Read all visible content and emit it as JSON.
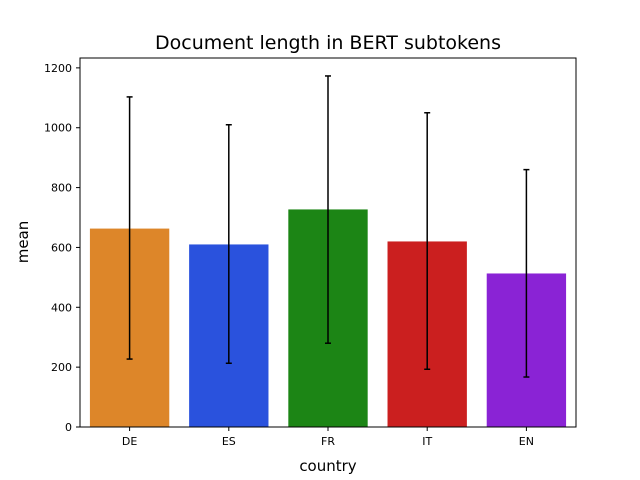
{
  "chart_data": {
    "type": "bar",
    "title": "Document length in BERT subtokens",
    "xlabel": "country",
    "ylabel": "mean",
    "categories": [
      "DE",
      "ES",
      "FR",
      "IT",
      "EN"
    ],
    "values": [
      663,
      610,
      727,
      620,
      513
    ],
    "error_low": [
      227,
      213,
      280,
      193,
      167
    ],
    "error_high": [
      1103,
      1010,
      1173,
      1050,
      860
    ],
    "colors": [
      "#dd8629",
      "#2a52dd",
      "#1c8515",
      "#cb1f1f",
      "#8a23d5"
    ],
    "ylim": [
      0,
      1233
    ],
    "yticks": [
      0,
      200,
      400,
      600,
      800,
      1000,
      1200
    ],
    "grid": false
  }
}
